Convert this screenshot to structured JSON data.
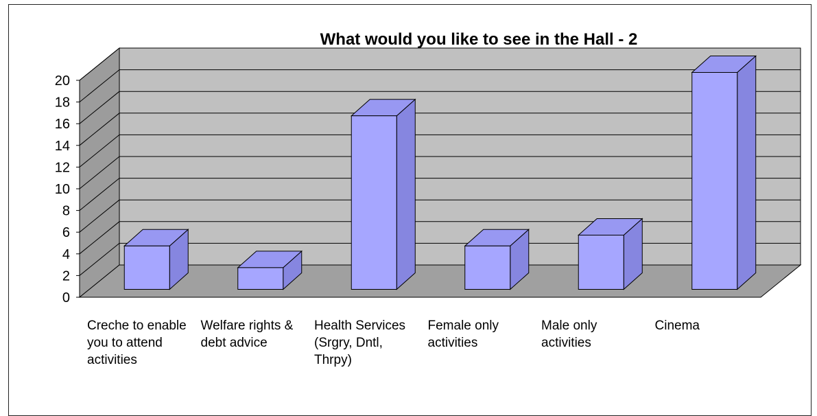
{
  "chart_data": {
    "type": "bar",
    "title": "What would you like to see in the Hall - 2",
    "categories": [
      "Creche to enable you to attend activities",
      "Welfare rights & debt advice",
      "Health Services (Srgry, Dntl, Thrpy)",
      "Female only activities",
      "Male only activities",
      "Cinema"
    ],
    "values": [
      4,
      2,
      16,
      4,
      5,
      20
    ],
    "ylim": [
      0,
      20
    ],
    "yticks": [
      "0",
      "2",
      "4",
      "6",
      "8",
      "10",
      "12",
      "14",
      "16",
      "18",
      "20"
    ],
    "grid": true,
    "colors": {
      "bar_front": "#a6a6ff",
      "bar_side": "#8686e0",
      "bar_top": "#9898f2",
      "wall": "#c0c0c0",
      "side_wall": "#9c9c9c",
      "floor": "#a0a0a0"
    }
  }
}
